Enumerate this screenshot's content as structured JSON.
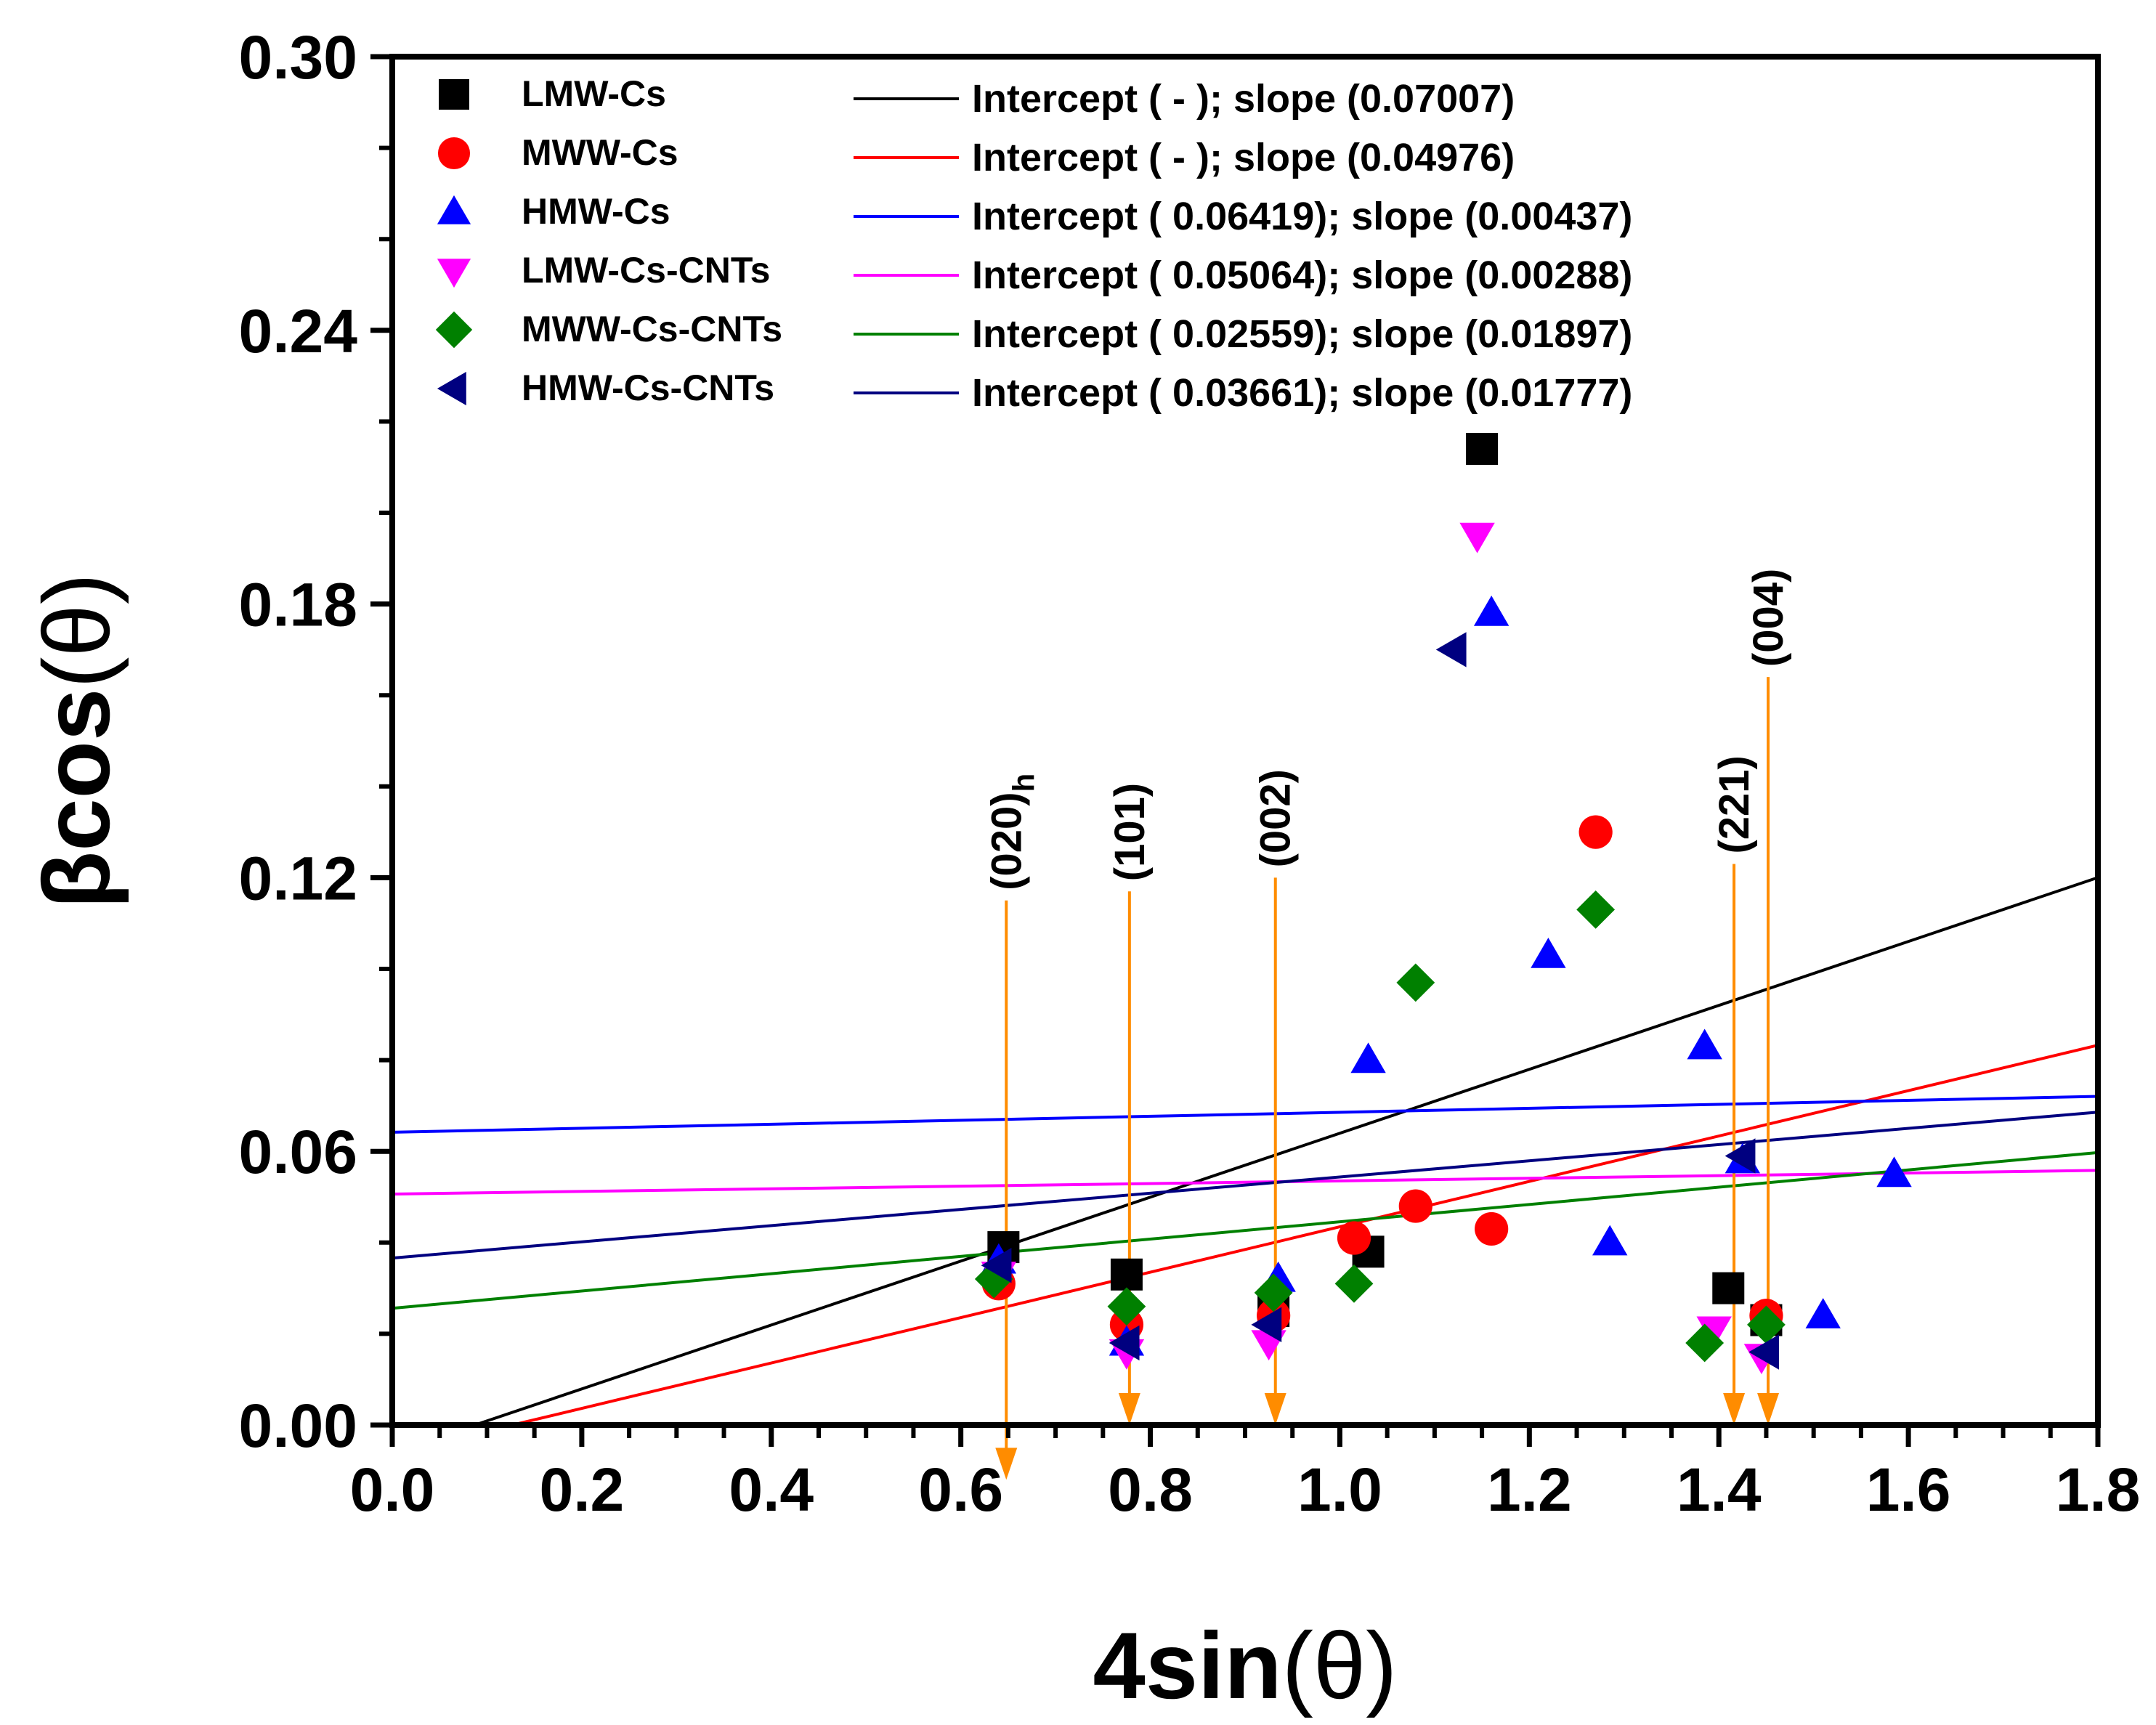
{
  "chart_data": {
    "type": "scatter",
    "xlabel": {
      "main": "4sin",
      "paren": "(θ)"
    },
    "ylabel": {
      "main": "βcos",
      "paren": "(θ)"
    },
    "xlim": [
      0.0,
      1.8
    ],
    "ylim": [
      0.0,
      0.3
    ],
    "x_ticks": [
      "0.0",
      "0.2",
      "0.4",
      "0.6",
      "0.8",
      "1.0",
      "1.2",
      "1.4",
      "1.6",
      "1.8"
    ],
    "y_ticks": [
      "0.00",
      "0.06",
      "0.12",
      "0.18",
      "0.24",
      "0.30"
    ],
    "series": [
      {
        "name": "LMW-Cs",
        "marker": "square",
        "color": "#000000",
        "points": [
          [
            0.645,
            0.039
          ],
          [
            0.775,
            0.033
          ],
          [
            0.93,
            0.025
          ],
          [
            1.03,
            0.038
          ],
          [
            1.15,
            0.214
          ],
          [
            1.41,
            0.03
          ],
          [
            1.45,
            0.023
          ]
        ]
      },
      {
        "name": "MWW-Cs",
        "marker": "circle",
        "color": "#ff0000",
        "points": [
          [
            0.64,
            0.031
          ],
          [
            0.775,
            0.022
          ],
          [
            0.93,
            0.024
          ],
          [
            1.015,
            0.041
          ],
          [
            1.08,
            0.048
          ],
          [
            1.16,
            0.043
          ],
          [
            1.27,
            0.13
          ],
          [
            1.45,
            0.024
          ]
        ]
      },
      {
        "name": "HMW-Cs",
        "marker": "triangle-up",
        "color": "#0000ff",
        "points": [
          [
            0.64,
            0.036
          ],
          [
            0.775,
            0.018
          ],
          [
            0.935,
            0.032
          ],
          [
            1.03,
            0.08
          ],
          [
            1.16,
            0.178
          ],
          [
            1.22,
            0.103
          ],
          [
            1.285,
            0.04
          ],
          [
            1.385,
            0.083
          ],
          [
            1.425,
            0.058
          ],
          [
            1.51,
            0.024
          ],
          [
            1.585,
            0.055
          ]
        ]
      },
      {
        "name": "LMW-Cs-CNTs",
        "marker": "triangle-down",
        "color": "#ff00ff",
        "points": [
          [
            0.64,
            0.033
          ],
          [
            0.775,
            0.016
          ],
          [
            0.925,
            0.018
          ],
          [
            1.145,
            0.195
          ],
          [
            1.395,
            0.021
          ],
          [
            1.445,
            0.015
          ]
        ]
      },
      {
        "name": "MWW-Cs-CNTs",
        "marker": "diamond",
        "color": "#008000",
        "points": [
          [
            0.635,
            0.032
          ],
          [
            0.775,
            0.026
          ],
          [
            0.93,
            0.029
          ],
          [
            1.015,
            0.031
          ],
          [
            1.08,
            0.097
          ],
          [
            1.27,
            0.113
          ],
          [
            1.385,
            0.018
          ],
          [
            1.45,
            0.022
          ]
        ]
      },
      {
        "name": "HMW-Cs-CNTs",
        "marker": "triangle-left",
        "color": "#000080",
        "points": [
          [
            0.64,
            0.035
          ],
          [
            0.775,
            0.018
          ],
          [
            0.925,
            0.022
          ],
          [
            1.12,
            0.17
          ],
          [
            1.425,
            0.059
          ],
          [
            1.45,
            0.016
          ]
        ]
      }
    ],
    "fit_lines": [
      {
        "series": "LMW-Cs",
        "color": "#000000",
        "intercept": -0.0061,
        "slope": 0.07007,
        "label": "Intercept (       -      ); slope (0.07007)"
      },
      {
        "series": "MWW-Cs",
        "color": "#ff0000",
        "intercept": -0.0063,
        "slope": 0.04976,
        "label": "Intercept (       -      ); slope (0.04976)"
      },
      {
        "series": "HMW-Cs",
        "color": "#0000ff",
        "intercept": 0.06419,
        "slope": 0.00437,
        "label": "Intercept ( 0.06419); slope (0.00437)"
      },
      {
        "series": "LMW-Cs-CNTs",
        "color": "#ff00ff",
        "intercept": 0.05064,
        "slope": 0.00288,
        "label": "Intercept ( 0.05064); slope (0.00288)"
      },
      {
        "series": "MWW-Cs-CNTs",
        "color": "#008000",
        "intercept": 0.02559,
        "slope": 0.01897,
        "label": "Intercept ( 0.02559); slope (0.01897)"
      },
      {
        "series": "HMW-Cs-CNTs",
        "color": "#000080",
        "intercept": 0.03661,
        "slope": 0.01777,
        "label": "Intercept ( 0.03661); slope (0.01777)"
      }
    ],
    "peak_annotations": [
      {
        "label": "(020)",
        "subscript": "h",
        "x": 0.648,
        "y_top": 0.115,
        "y_bottom": -0.012
      },
      {
        "label": "(101)",
        "subscript": "",
        "x": 0.778,
        "y_top": 0.117,
        "y_bottom": 0.0
      },
      {
        "label": "(002)",
        "subscript": "",
        "x": 0.932,
        "y_top": 0.12,
        "y_bottom": 0.0
      },
      {
        "label": "(221)",
        "subscript": "",
        "x": 1.416,
        "y_top": 0.123,
        "y_bottom": 0.0
      },
      {
        "label": "(004)",
        "subscript": "",
        "x": 1.452,
        "y_top": 0.164,
        "y_bottom": 0.0
      }
    ],
    "annotation_color": "#ff8c00",
    "legend_position": "top-left"
  }
}
